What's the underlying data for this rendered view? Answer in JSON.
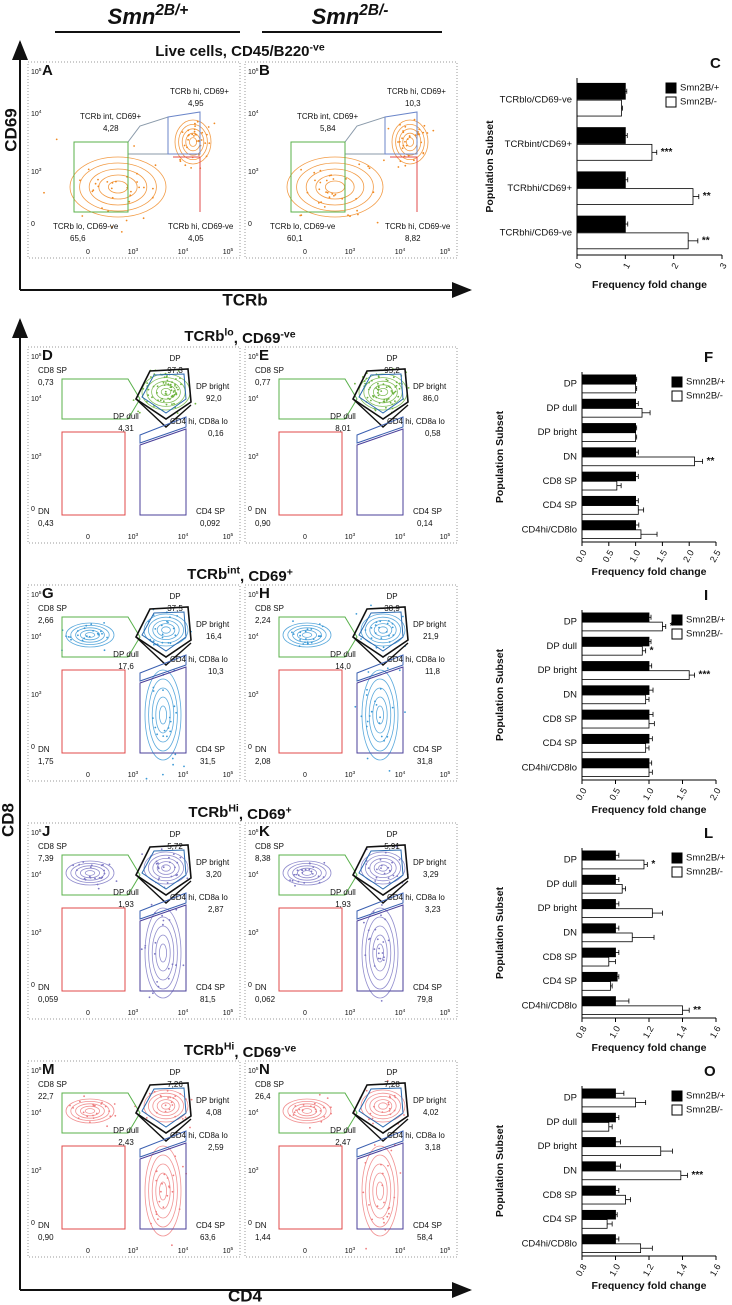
{
  "header": {
    "genotypes": [
      [
        {
          "t": "Smn"
        },
        {
          "sup": "2B/+"
        }
      ],
      [
        {
          "t": "Smn"
        },
        {
          "sup": "2B/-"
        }
      ]
    ],
    "axis_labels": {
      "top_y": "CD69",
      "top_x": "TCRb",
      "bottom_y": "CD8",
      "bottom_x": "CD4"
    }
  },
  "flow_yticks": [
    [
      {
        "t": "10"
      },
      {
        "sup": "5"
      }
    ],
    [
      {
        "t": "10"
      },
      {
        "sup": "4"
      }
    ],
    [
      {
        "t": "10"
      },
      {
        "sup": "3"
      }
    ],
    [
      {
        "t": "0"
      }
    ]
  ],
  "flow_xticks": [
    [
      {
        "t": "0"
      }
    ],
    [
      {
        "t": "10"
      },
      {
        "sup": "3"
      }
    ],
    [
      {
        "t": "10"
      },
      {
        "sup": "4"
      }
    ],
    [
      {
        "t": "10"
      },
      {
        "sup": "5"
      }
    ]
  ],
  "sections": [
    {
      "title": [
        {
          "t": "Live cells, CD45/B220"
        },
        {
          "sup": "-ve"
        }
      ],
      "color": "#f08a24",
      "gate_names": [
        "TCRb int, CD69+",
        "TCRb hi, CD69+",
        "TCRb lo, CD69-ve",
        "TCRb hi, CD69-ve"
      ],
      "panels": [
        {
          "letter": "A",
          "values": [
            "4,28",
            "4,95",
            "65,6",
            "4,05"
          ]
        },
        {
          "letter": "B",
          "values": [
            "5,84",
            "10,3",
            "60,1",
            "8,82"
          ]
        }
      ]
    },
    {
      "title": [
        {
          "t": "TCRb"
        },
        {
          "sup": "lo"
        },
        {
          "t": ", CD69"
        },
        {
          "sup": "-ve"
        }
      ],
      "color": "#6db33f",
      "gate_names": [
        "CD8 SP",
        "DP",
        "DP bright",
        "DP dull",
        "CD4 hi, CD8a lo",
        "DN",
        "CD4 SP"
      ],
      "panels": [
        {
          "letter": "D",
          "values": [
            "0,73",
            "97,3",
            "92,0",
            "4,31",
            "0,16",
            "0,43",
            "0,092"
          ]
        },
        {
          "letter": "E",
          "values": [
            "0,77",
            "95,2",
            "86,0",
            "8,01",
            "0,58",
            "0,90",
            "0,14"
          ]
        }
      ]
    },
    {
      "title": [
        {
          "t": "TCRb"
        },
        {
          "sup": "int"
        },
        {
          "t": ", CD69"
        },
        {
          "sup": "+"
        }
      ],
      "color": "#3d9ad6",
      "gate_names": [
        "CD8 SP",
        "DP",
        "DP bright",
        "DP dull",
        "CD4 hi, CD8a lo",
        "DN",
        "CD4 SP"
      ],
      "panels": [
        {
          "letter": "G",
          "values": [
            "2,66",
            "37,5",
            "16,4",
            "17,6",
            "10,3",
            "1,75",
            "31,5"
          ]
        },
        {
          "letter": "H",
          "values": [
            "2,24",
            "38,9",
            "21,9",
            "14,0",
            "11,8",
            "2,08",
            "31,8"
          ]
        }
      ]
    },
    {
      "title": [
        {
          "t": "TCRb"
        },
        {
          "sup": "Hi"
        },
        {
          "t": ", CD69"
        },
        {
          "sup": "+"
        }
      ],
      "color": "#7d78c4",
      "gate_names": [
        "CD8 SP",
        "DP",
        "DP bright",
        "DP dull",
        "CD4 hi, CD8a lo",
        "DN",
        "CD4 SP"
      ],
      "panels": [
        {
          "letter": "J",
          "values": [
            "7,39",
            "5,72",
            "3,20",
            "1,93",
            "2,87",
            "0,059",
            "81,5"
          ]
        },
        {
          "letter": "K",
          "values": [
            "8,38",
            "5,91",
            "3,29",
            "1,93",
            "3,23",
            "0,062",
            "79,8"
          ]
        }
      ]
    },
    {
      "title": [
        {
          "t": "TCRb"
        },
        {
          "sup": "Hi"
        },
        {
          "t": ", CD69"
        },
        {
          "sup": "-ve"
        }
      ],
      "color": "#ef7f80",
      "gate_names": [
        "CD8 SP",
        "DP",
        "DP bright",
        "DP dull",
        "CD4 hi, CD8a lo",
        "DN",
        "CD4 SP"
      ],
      "panels": [
        {
          "letter": "M",
          "values": [
            "22,7",
            "7,26",
            "4,08",
            "2,43",
            "2,59",
            "0,90",
            "63,6"
          ]
        },
        {
          "letter": "N",
          "values": [
            "26,4",
            "7,28",
            "4,02",
            "2,47",
            "3,18",
            "1,44",
            "58,4"
          ]
        }
      ]
    }
  ],
  "chart_data": [
    {
      "type": "barh",
      "title": "C",
      "xlabel": "Frequency fold change",
      "ylabel": "Population Subset",
      "categories": [
        "TCRblo/CD69-ve",
        "TCRbint/CD69+",
        "TCRbhi/CD69+",
        "TCRbhi/CD69-ve"
      ],
      "series": [
        {
          "name": "Smn2B/+",
          "color": "#000000",
          "values": [
            1,
            1,
            1,
            1
          ],
          "errors": [
            0.03,
            0.04,
            0.05,
            0.05
          ]
        },
        {
          "name": "Smn2B/-",
          "color": "#ffffff",
          "values": [
            0.92,
            1.55,
            2.4,
            2.3
          ],
          "errors": [
            0.02,
            0.1,
            0.12,
            0.2
          ]
        }
      ],
      "significance": [
        null,
        "***",
        "**",
        "**"
      ],
      "xlim": [
        0,
        3
      ],
      "xticks": [
        0,
        1,
        2,
        3
      ],
      "legend": "upper right"
    },
    {
      "type": "barh",
      "title": "F",
      "xlabel": "Frequency fold change",
      "ylabel": "Population Subset",
      "categories": [
        "DP",
        "DP dull",
        "DP bright",
        "DN",
        "CD8 SP",
        "CD4 SP",
        "CD4hi/CD8lo"
      ],
      "series": [
        {
          "name": "Smn2B/+",
          "color": "#000000",
          "values": [
            1,
            1,
            1,
            1,
            1,
            1,
            1
          ],
          "errors": [
            0.02,
            0.05,
            0.02,
            0.05,
            0.05,
            0.05,
            0.06
          ]
        },
        {
          "name": "Smn2B/-",
          "color": "#ffffff",
          "values": [
            1.0,
            1.12,
            1.0,
            2.1,
            0.65,
            1.05,
            1.1
          ],
          "errors": [
            0.02,
            0.15,
            0.02,
            0.15,
            0.08,
            0.1,
            0.3
          ]
        }
      ],
      "significance": [
        null,
        null,
        null,
        "**",
        null,
        null,
        null
      ],
      "xlim": [
        0,
        2.5
      ],
      "xticks": [
        {
          "value": 0,
          "label": "0.0"
        },
        0.5,
        {
          "value": 1,
          "label": "1.0"
        },
        1.5,
        {
          "value": 2,
          "label": "2.0"
        },
        2.5
      ],
      "legend": "upper right"
    },
    {
      "type": "barh",
      "title": "I",
      "xlabel": "Frequency fold change",
      "ylabel": "Population Subset",
      "categories": [
        "DP",
        "DP dull",
        "DP bright",
        "DN",
        "CD8 SP",
        "CD4 SP",
        "CD4hi/CD8lo"
      ],
      "series": [
        {
          "name": "Smn2B/+",
          "color": "#000000",
          "values": [
            1,
            1,
            1,
            1,
            1,
            1,
            1
          ],
          "errors": [
            0.03,
            0.03,
            0.04,
            0.06,
            0.06,
            0.05,
            0.04
          ]
        },
        {
          "name": "Smn2B/-",
          "color": "#ffffff",
          "values": [
            1.2,
            0.9,
            1.6,
            0.95,
            1.0,
            0.95,
            1.0
          ],
          "errors": [
            0.05,
            0.05,
            0.08,
            0.05,
            0.08,
            0.05,
            0.05
          ]
        }
      ],
      "significance": [
        "*",
        "*",
        "***",
        null,
        null,
        null,
        null
      ],
      "xlim": [
        0,
        2
      ],
      "xticks": [
        {
          "value": 0,
          "label": "0.0"
        },
        0.5,
        {
          "value": 1,
          "label": "1.0"
        },
        1.5,
        {
          "value": 2,
          "label": "2.0"
        }
      ],
      "legend": "upper right"
    },
    {
      "type": "barh",
      "title": "L",
      "xlabel": "Frequency fold change",
      "ylabel": "Population Subset",
      "categories": [
        "DP",
        "DP dull",
        "DP bright",
        "DN",
        "CD8 SP",
        "CD4 SP",
        "CD4hi/CD8lo"
      ],
      "series": [
        {
          "name": "Smn2B/+",
          "color": "#000000",
          "values": [
            1,
            1,
            1,
            1,
            1,
            1.01,
            1
          ],
          "errors": [
            0.02,
            0.02,
            0.02,
            0.02,
            0.02,
            0.01,
            0.08
          ]
        },
        {
          "name": "Smn2B/-",
          "color": "#ffffff",
          "values": [
            1.17,
            1.04,
            1.22,
            1.1,
            0.96,
            0.97,
            1.4
          ],
          "errors": [
            0.02,
            0.02,
            0.06,
            0.13,
            0.04,
            0.01,
            0.04
          ]
        }
      ],
      "significance": [
        "*",
        null,
        null,
        null,
        null,
        null,
        "**"
      ],
      "xlim": [
        0.8,
        1.6
      ],
      "xticks": [
        0.8,
        {
          "value": 1,
          "label": "1.0"
        },
        1.2,
        1.4,
        1.6
      ],
      "legend": "upper right"
    },
    {
      "type": "barh",
      "title": "O",
      "xlabel": "Frequency fold change",
      "ylabel": "Population Subset",
      "categories": [
        "DP",
        "DP dull",
        "DP bright",
        "DN",
        "CD8 SP",
        "CD4 SP",
        "CD4hi/CD8lo"
      ],
      "series": [
        {
          "name": "Smn2B/+",
          "color": "#000000",
          "values": [
            1,
            1,
            1,
            1,
            1,
            1,
            1
          ],
          "errors": [
            0.05,
            0.02,
            0.03,
            0.03,
            0.02,
            0.01,
            0.02
          ]
        },
        {
          "name": "Smn2B/-",
          "color": "#ffffff",
          "values": [
            1.12,
            0.96,
            1.27,
            1.39,
            1.06,
            0.95,
            1.15
          ],
          "errors": [
            0.06,
            0.02,
            0.07,
            0.04,
            0.03,
            0.03,
            0.07
          ]
        }
      ],
      "significance": [
        null,
        null,
        null,
        "***",
        null,
        null,
        null
      ],
      "xlim": [
        0.8,
        1.6
      ],
      "xticks": [
        0.8,
        {
          "value": 1,
          "label": "1.0"
        },
        1.2,
        1.4,
        1.6
      ],
      "legend": "upper right"
    }
  ]
}
